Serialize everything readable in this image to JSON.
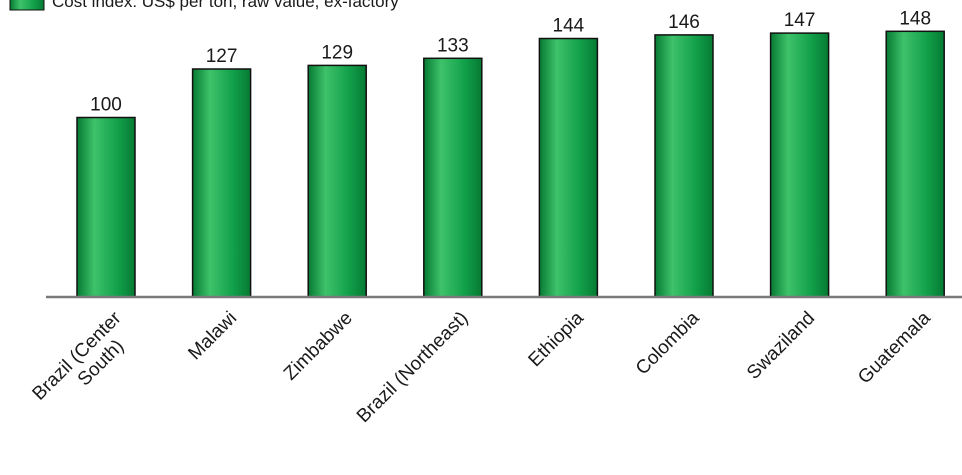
{
  "chart_data": {
    "type": "bar",
    "legend": "Cost index: US$ per ton, raw value, ex-factory",
    "legend_position": "top-left",
    "categories": [
      [
        "Brazil (Center",
        "South)"
      ],
      [
        "Malawi"
      ],
      [
        "Zimbabwe"
      ],
      [
        "Brazil (Northeast)"
      ],
      [
        "Ethiopia"
      ],
      [
        "Colombia"
      ],
      [
        "Swaziland"
      ],
      [
        "Guatemala"
      ]
    ],
    "values": [
      100,
      127,
      129,
      133,
      144,
      146,
      147,
      148
    ],
    "value_labels": [
      "100",
      "127",
      "129",
      "133",
      "144",
      "146",
      "147",
      "148"
    ],
    "xlabel": "",
    "ylabel": "",
    "ylim": [
      0,
      150
    ],
    "grid": false,
    "colors": {
      "bar_light": "#3ec26a",
      "bar_mid": "#12a04a",
      "bar_dark": "#067a33",
      "bar_border": "#111111",
      "axis": "#7a7a7a"
    }
  }
}
